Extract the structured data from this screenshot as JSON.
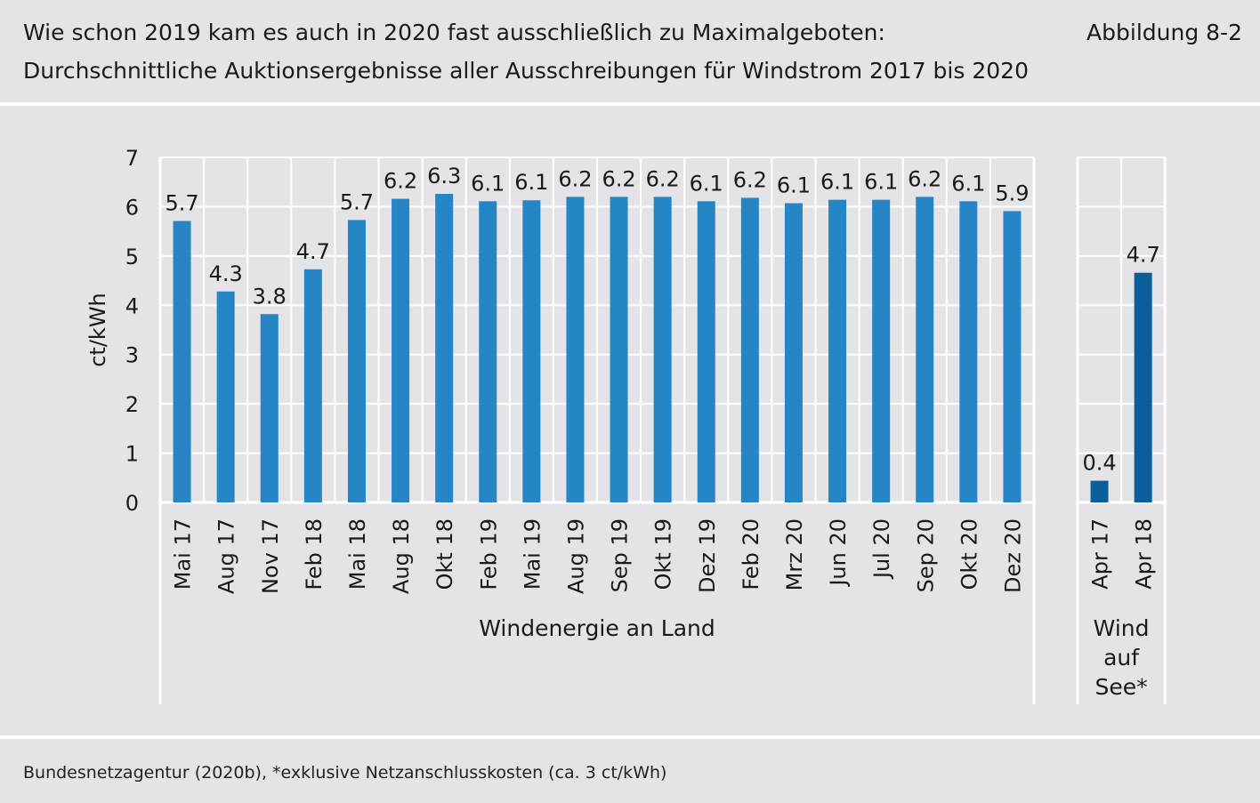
{
  "header": {
    "title_line1": "Wie schon 2019 kam es auch in 2020 fast ausschließlich zu Maximalgeboten:",
    "title_line2": "Durchschnittliche Auktionsergebnisse aller Ausschreibungen für Windstrom 2017 bis 2020",
    "figure_label": "Abbildung 8-2"
  },
  "source": "Bundesnetzagentur (2020b), *exklusive Netzanschlusskosten (ca. 3 ct/kWh)",
  "colors": {
    "background": "#e4e4e8",
    "grid": "#ffffff",
    "onshore_bar": "#2585c5",
    "offshore_bar": "#0a5f9a"
  },
  "chart_data": {
    "type": "bar",
    "ylabel": "ct/kWh",
    "ylim": [
      0,
      7
    ],
    "yticks": [
      0,
      1,
      2,
      3,
      4,
      5,
      6,
      7
    ],
    "grid": true,
    "groups": [
      {
        "name": "Windenergie an Land",
        "color": "#2585c5",
        "categories": [
          "Mai 17",
          "Aug 17",
          "Nov 17",
          "Feb 18",
          "Mai 18",
          "Aug 18",
          "Okt 18",
          "Feb 19",
          "Mai 19",
          "Aug 19",
          "Sep 19",
          "Okt 19",
          "Dez 19",
          "Feb 20",
          "Mrz 20",
          "Jun 20",
          "Jul 20",
          "Sep 20",
          "Okt 20",
          "Dez 20"
        ],
        "values": [
          5.71,
          4.28,
          3.82,
          4.73,
          5.73,
          6.16,
          6.26,
          6.11,
          6.13,
          6.2,
          6.2,
          6.2,
          6.11,
          6.18,
          6.07,
          6.14,
          6.14,
          6.2,
          6.11,
          5.91
        ],
        "labels": [
          "5.7",
          "4.3",
          "3.8",
          "4.7",
          "5.7",
          "6.2",
          "6.3",
          "6.1",
          "6.1",
          "6.2",
          "6.2",
          "6.2",
          "6.1",
          "6.2",
          "6.1",
          "6.1",
          "6.1",
          "6.2",
          "6.1",
          "5.9"
        ]
      },
      {
        "name": "Wind auf See*",
        "name_lines": [
          "Wind",
          "auf",
          "See*"
        ],
        "color": "#0a5f9a",
        "categories": [
          "Apr 17",
          "Apr 18"
        ],
        "values": [
          0.44,
          4.66
        ],
        "labels": [
          "0.4",
          "4.7"
        ]
      }
    ]
  }
}
